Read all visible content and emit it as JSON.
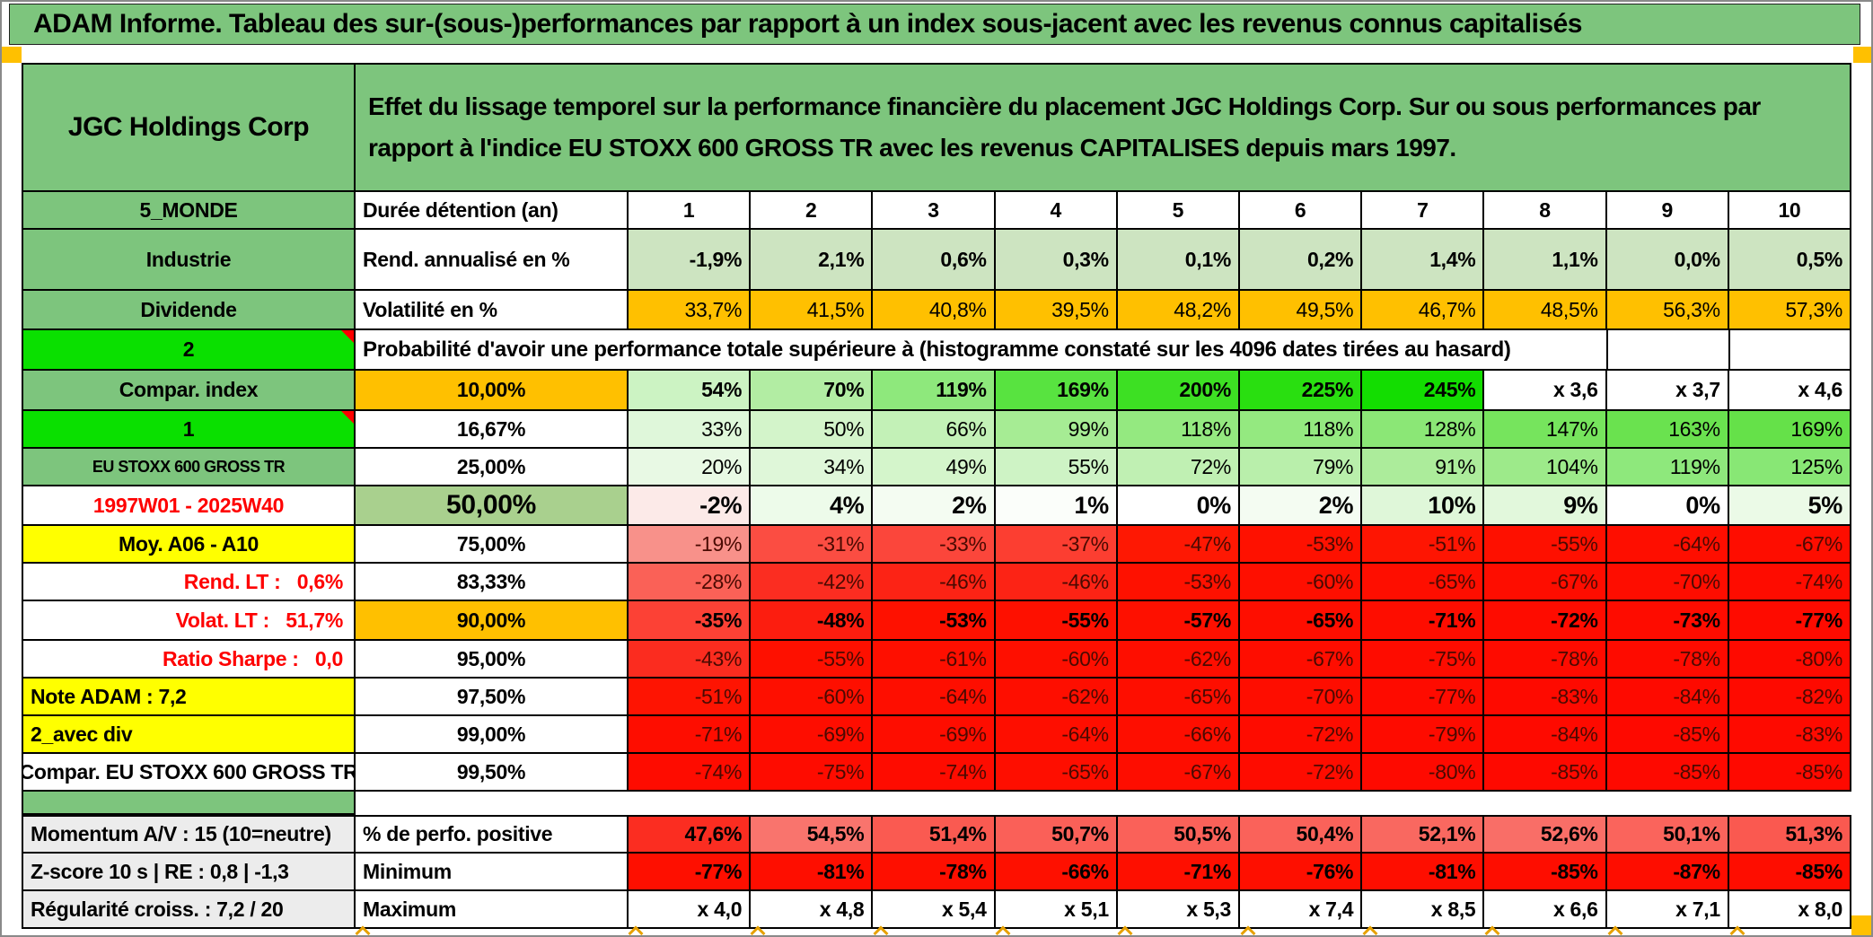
{
  "title": "ADAM Informe. Tableau des sur-(sous-)performances par rapport à un index sous-jacent avec les revenus connus capitalisés",
  "table": {
    "entity": "JGC Holdings Corp",
    "description": "Effet du lissage temporel sur la performance financière du placement JGC Holdings Corp. Sur ou sous performances par rapport à l'indice EU STOXX 600 GROSS TR avec les revenus CAPITALISES depuis mars 1997.",
    "rows": [
      {
        "left": "5_MONDE",
        "mid": "Durée détention (an)",
        "cells": [
          {
            "t": "1",
            "bg": "#ffffff"
          },
          {
            "t": "2",
            "bg": "#ffffff"
          },
          {
            "t": "3",
            "bg": "#ffffff"
          },
          {
            "t": "4",
            "bg": "#ffffff"
          },
          {
            "t": "5",
            "bg": "#ffffff"
          },
          {
            "t": "6",
            "bg": "#ffffff"
          },
          {
            "t": "7",
            "bg": "#ffffff"
          },
          {
            "t": "8",
            "bg": "#ffffff"
          },
          {
            "t": "9",
            "bg": "#ffffff"
          },
          {
            "t": "10",
            "bg": "#ffffff"
          }
        ]
      },
      {
        "left": "Industrie",
        "mid": "Rend. annualisé en %",
        "cells": [
          {
            "t": "-1,9%",
            "bg": "#cde4c1"
          },
          {
            "t": "2,1%",
            "bg": "#cde4c1"
          },
          {
            "t": "0,6%",
            "bg": "#cde4c1"
          },
          {
            "t": "0,3%",
            "bg": "#cde4c1"
          },
          {
            "t": "0,1%",
            "bg": "#cde4c1"
          },
          {
            "t": "0,2%",
            "bg": "#cde4c1"
          },
          {
            "t": "1,4%",
            "bg": "#cde4c1"
          },
          {
            "t": "1,1%",
            "bg": "#cde4c1"
          },
          {
            "t": "0,0%",
            "bg": "#cde4c1"
          },
          {
            "t": "0,5%",
            "bg": "#cde4c1"
          }
        ]
      },
      {
        "left": "Dividende",
        "mid": "Volatilité en %",
        "cells": [
          {
            "t": "33,7%",
            "bg": "#ffc000"
          },
          {
            "t": "41,5%",
            "bg": "#ffc000"
          },
          {
            "t": "40,8%",
            "bg": "#ffc000"
          },
          {
            "t": "39,5%",
            "bg": "#ffc000"
          },
          {
            "t": "48,2%",
            "bg": "#ffc000"
          },
          {
            "t": "49,5%",
            "bg": "#ffc000"
          },
          {
            "t": "46,7%",
            "bg": "#ffc000"
          },
          {
            "t": "48,5%",
            "bg": "#ffc000"
          },
          {
            "t": "56,3%",
            "bg": "#ffc000"
          },
          {
            "t": "57,3%",
            "bg": "#ffc000"
          }
        ]
      },
      {
        "left": "2",
        "mid": "Probabilité d'avoir une performance totale supérieure à (histogramme constaté sur les 4096 dates tirées au hasard)",
        "cells": [
          {
            "t": "",
            "bg": "#ffffff"
          },
          {
            "t": "",
            "bg": "#ffffff"
          }
        ]
      },
      {
        "left": "Compar. index",
        "mid": "10,00%",
        "cells": [
          {
            "t": "54%",
            "bg": "#ccf3c3"
          },
          {
            "t": "70%",
            "bg": "#b2eda3"
          },
          {
            "t": "119%",
            "bg": "#8ee87c"
          },
          {
            "t": "169%",
            "bg": "#58e340"
          },
          {
            "t": "200%",
            "bg": "#3de023"
          },
          {
            "t": "225%",
            "bg": "#29df10"
          },
          {
            "t": "245%",
            "bg": "#13dd01"
          },
          {
            "t": "x 3,6",
            "bg": "#ffffff"
          },
          {
            "t": "x 3,7",
            "bg": "#ffffff"
          },
          {
            "t": "x 4,6",
            "bg": "#ffffff"
          }
        ]
      },
      {
        "left": "1",
        "mid": "16,67%",
        "cells": [
          {
            "t": "33%",
            "bg": "#dff7da"
          },
          {
            "t": "50%",
            "bg": "#d3f4ca"
          },
          {
            "t": "66%",
            "bg": "#c3f1b7"
          },
          {
            "t": "99%",
            "bg": "#a6ec94"
          },
          {
            "t": "118%",
            "bg": "#94e980"
          },
          {
            "t": "118%",
            "bg": "#94e980"
          },
          {
            "t": "128%",
            "bg": "#8be776"
          },
          {
            "t": "147%",
            "bg": "#76e45d"
          },
          {
            "t": "163%",
            "bg": "#6ae24f"
          },
          {
            "t": "169%",
            "bg": "#65e149"
          }
        ]
      },
      {
        "left": "EU STOXX 600 GROSS TR",
        "mid": "25,00%",
        "cells": [
          {
            "t": "20%",
            "bg": "#e8f9e4"
          },
          {
            "t": "34%",
            "bg": "#dff7d9"
          },
          {
            "t": "49%",
            "bg": "#d4f5cb"
          },
          {
            "t": "55%",
            "bg": "#cef3c5"
          },
          {
            "t": "72%",
            "bg": "#c0f0b3"
          },
          {
            "t": "79%",
            "bg": "#b9efab"
          },
          {
            "t": "91%",
            "bg": "#acec9b"
          },
          {
            "t": "104%",
            "bg": "#9dea8a"
          },
          {
            "t": "119%",
            "bg": "#8ee87c"
          },
          {
            "t": "125%",
            "bg": "#88e775"
          }
        ]
      },
      {
        "left": "1997W01 - 2025W40",
        "mid": "50,00%",
        "cells": [
          {
            "t": "-2%",
            "bg": "#fceae8"
          },
          {
            "t": "4%",
            "bg": "#edfbea"
          },
          {
            "t": "2%",
            "bg": "#f4fcf2"
          },
          {
            "t": "1%",
            "bg": "#fbfefa"
          },
          {
            "t": "0%",
            "bg": "#ffffff"
          },
          {
            "t": "2%",
            "bg": "#f4fcf2"
          },
          {
            "t": "10%",
            "bg": "#dff7d9"
          },
          {
            "t": "9%",
            "bg": "#e2f8dc"
          },
          {
            "t": "0%",
            "bg": "#ffffff"
          },
          {
            "t": "5%",
            "bg": "#ebfae7"
          }
        ]
      },
      {
        "left": "Moy. A06 - A10",
        "mid": "75,00%",
        "cells": [
          {
            "t": "-19%",
            "bg": "#f8918a"
          },
          {
            "t": "-31%",
            "bg": "#fb4d42"
          },
          {
            "t": "-33%",
            "bg": "#fb463b"
          },
          {
            "t": "-37%",
            "bg": "#fc3e31"
          },
          {
            "t": "-47%",
            "bg": "#fe1803"
          },
          {
            "t": "-53%",
            "bg": "#fe1100"
          },
          {
            "t": "-51%",
            "bg": "#fe1502"
          },
          {
            "t": "-55%",
            "bg": "#fe1000"
          },
          {
            "t": "-64%",
            "bg": "#fe0e00"
          },
          {
            "t": "-67%",
            "bg": "#fe0d00"
          }
        ]
      },
      {
        "left": "Rend. LT :   0,6%",
        "mid": "83,33%",
        "cells": [
          {
            "t": "-28%",
            "bg": "#fa6157"
          },
          {
            "t": "-42%",
            "bg": "#fb2d21"
          },
          {
            "t": "-46%",
            "bg": "#fc2315"
          },
          {
            "t": "-46%",
            "bg": "#fc2315"
          },
          {
            "t": "-53%",
            "bg": "#fe1100"
          },
          {
            "t": "-60%",
            "bg": "#fe0f00"
          },
          {
            "t": "-65%",
            "bg": "#fe0e00"
          },
          {
            "t": "-67%",
            "bg": "#fe0d00"
          },
          {
            "t": "-70%",
            "bg": "#fe0d00"
          },
          {
            "t": "-74%",
            "bg": "#fe0c00"
          }
        ]
      },
      {
        "left": "Volat. LT :   51,7%",
        "mid": "90,00%",
        "cells": [
          {
            "t": "-35%",
            "bg": "#fc4135"
          },
          {
            "t": "-48%",
            "bg": "#fc1d0f"
          },
          {
            "t": "-53%",
            "bg": "#fe1100"
          },
          {
            "t": "-55%",
            "bg": "#fe1000"
          },
          {
            "t": "-57%",
            "bg": "#fe1000"
          },
          {
            "t": "-65%",
            "bg": "#fe0e00"
          },
          {
            "t": "-71%",
            "bg": "#fe0d00"
          },
          {
            "t": "-72%",
            "bg": "#fe0c00"
          },
          {
            "t": "-73%",
            "bg": "#fe0c00"
          },
          {
            "t": "-77%",
            "bg": "#fe0b00"
          }
        ]
      },
      {
        "left": "Ratio Sharpe :   0,0",
        "mid": "95,00%",
        "cells": [
          {
            "t": "-43%",
            "bg": "#fb2c1f"
          },
          {
            "t": "-55%",
            "bg": "#fe1000"
          },
          {
            "t": "-61%",
            "bg": "#fe0f00"
          },
          {
            "t": "-60%",
            "bg": "#fe0f00"
          },
          {
            "t": "-62%",
            "bg": "#fe0e00"
          },
          {
            "t": "-67%",
            "bg": "#fe0d00"
          },
          {
            "t": "-75%",
            "bg": "#fe0c00"
          },
          {
            "t": "-78%",
            "bg": "#fe0b00"
          },
          {
            "t": "-78%",
            "bg": "#fe0b00"
          },
          {
            "t": "-80%",
            "bg": "#fe0a00"
          }
        ]
      },
      {
        "left": "Note ADAM : 7,2",
        "mid": "97,50%",
        "cells": [
          {
            "t": "-51%",
            "bg": "#fe1402"
          },
          {
            "t": "-60%",
            "bg": "#fe0f00"
          },
          {
            "t": "-64%",
            "bg": "#fe0e00"
          },
          {
            "t": "-62%",
            "bg": "#fe0e00"
          },
          {
            "t": "-65%",
            "bg": "#fe0e00"
          },
          {
            "t": "-70%",
            "bg": "#fe0d00"
          },
          {
            "t": "-77%",
            "bg": "#fe0b00"
          },
          {
            "t": "-83%",
            "bg": "#fe0a00"
          },
          {
            "t": "-84%",
            "bg": "#fe0a00"
          },
          {
            "t": "-82%",
            "bg": "#fe0a00"
          }
        ]
      },
      {
        "left": "2_avec div",
        "mid": "99,00%",
        "cells": [
          {
            "t": "-71%",
            "bg": "#fe0d00"
          },
          {
            "t": "-69%",
            "bg": "#fe0d00"
          },
          {
            "t": "-69%",
            "bg": "#fe0d00"
          },
          {
            "t": "-64%",
            "bg": "#fe0e00"
          },
          {
            "t": "-66%",
            "bg": "#fe0e00"
          },
          {
            "t": "-72%",
            "bg": "#fe0c00"
          },
          {
            "t": "-79%",
            "bg": "#fe0b00"
          },
          {
            "t": "-84%",
            "bg": "#fe0a00"
          },
          {
            "t": "-85%",
            "bg": "#fe0900"
          },
          {
            "t": "-83%",
            "bg": "#fe0a00"
          }
        ]
      },
      {
        "left": "Compar. EU STOXX 600 GROSS TR",
        "mid": "99,50%",
        "cells": [
          {
            "t": "-74%",
            "bg": "#fe0c00"
          },
          {
            "t": "-75%",
            "bg": "#fe0c00"
          },
          {
            "t": "-74%",
            "bg": "#fe0c00"
          },
          {
            "t": "-65%",
            "bg": "#fe0e00"
          },
          {
            "t": "-67%",
            "bg": "#fe0d00"
          },
          {
            "t": "-72%",
            "bg": "#fe0c00"
          },
          {
            "t": "-80%",
            "bg": "#fe0a00"
          },
          {
            "t": "-85%",
            "bg": "#fe0900"
          },
          {
            "t": "-85%",
            "bg": "#fe0900"
          },
          {
            "t": "-85%",
            "bg": "#fe0900"
          }
        ]
      },
      {
        "left": "Momentum A/V : 15 (10=neutre)",
        "mid": "% de perfo. positive",
        "cells": [
          {
            "t": "47,6%",
            "bg": "#fb2d21"
          },
          {
            "t": "54,5%",
            "bg": "#f9746d"
          },
          {
            "t": "51,4%",
            "bg": "#fa5a51"
          },
          {
            "t": "50,7%",
            "bg": "#fa6058"
          },
          {
            "t": "50,5%",
            "bg": "#fa6159"
          },
          {
            "t": "50,4%",
            "bg": "#fa625a"
          },
          {
            "t": "52,1%",
            "bg": "#f96860"
          },
          {
            "t": "52,6%",
            "bg": "#f96e67"
          },
          {
            "t": "50,1%",
            "bg": "#fa645c"
          },
          {
            "t": "51,3%",
            "bg": "#fa5950"
          }
        ]
      },
      {
        "left": "Z-score 10 s | RE : 0,8 | -1,3",
        "mid": "Minimum",
        "cells": [
          {
            "t": "-77%",
            "bg": "#fe0f00"
          },
          {
            "t": "-81%",
            "bg": "#fe0e00"
          },
          {
            "t": "-78%",
            "bg": "#fe0f00"
          },
          {
            "t": "-66%",
            "bg": "#fe1000"
          },
          {
            "t": "-71%",
            "bg": "#fe0f00"
          },
          {
            "t": "-76%",
            "bg": "#fe0f00"
          },
          {
            "t": "-81%",
            "bg": "#fe0e00"
          },
          {
            "t": "-85%",
            "bg": "#fe0d00"
          },
          {
            "t": "-87%",
            "bg": "#fe0d00"
          },
          {
            "t": "-85%",
            "bg": "#fe0d00"
          }
        ]
      },
      {
        "left": "Régularité croiss. : 7,2 / 20",
        "mid": "Maximum",
        "cells": [
          {
            "t": "x 4,0",
            "bg": "#ffffff"
          },
          {
            "t": "x 4,8",
            "bg": "#ffffff"
          },
          {
            "t": "x 5,4",
            "bg": "#ffffff"
          },
          {
            "t": "x 5,1",
            "bg": "#ffffff"
          },
          {
            "t": "x 5,3",
            "bg": "#ffffff"
          },
          {
            "t": "x 7,4",
            "bg": "#ffffff"
          },
          {
            "t": "x 8,5",
            "bg": "#ffffff"
          },
          {
            "t": "x 6,6",
            "bg": "#ffffff"
          },
          {
            "t": "x 7,1",
            "bg": "#ffffff"
          },
          {
            "t": "x 8,0",
            "bg": "#ffffff"
          }
        ]
      }
    ]
  },
  "colors": {
    "header_green": "#7dc57d",
    "bright_green": "#0ae000",
    "light_green": "#cde4c1",
    "mid_green": "#a9d08e",
    "orange": "#ffc000",
    "yellow": "#ffff00",
    "bright_red": "#fe0e00",
    "label_gray": "#ececec",
    "marker_orange": "#e7a100",
    "red_label_text": "#fe0000"
  }
}
